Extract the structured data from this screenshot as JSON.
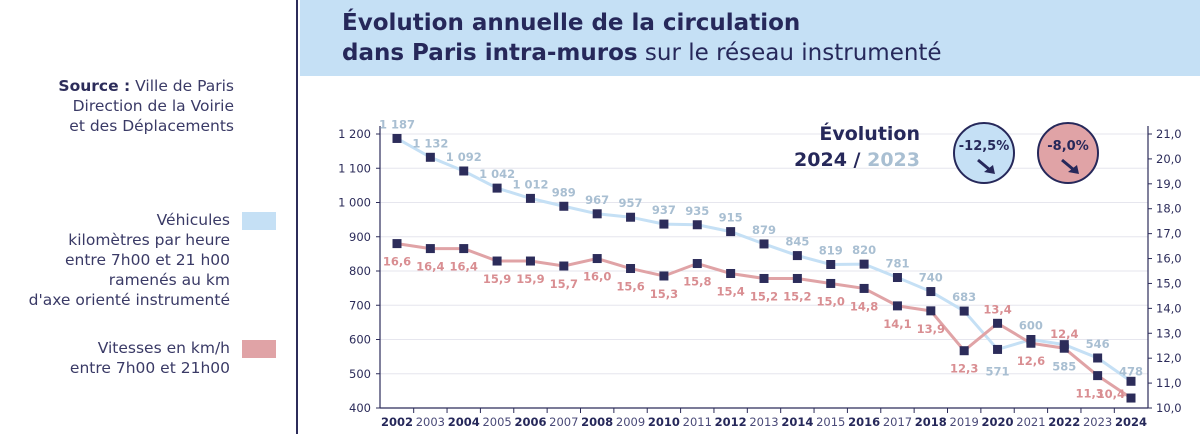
{
  "header": {
    "title_line1": "Évolution annuelle de la circulation",
    "title_line2_bold": "dans Paris intra-muros",
    "title_line2_light": " sur le réseau instrumenté"
  },
  "source": {
    "label": "Source :",
    "line1": " Ville de Paris",
    "line2": "Direction de la Voirie",
    "line3": "et des Déplacements"
  },
  "legend": {
    "vehicles": [
      "Véhicules",
      "kilomètres par heure",
      "entre 7h00 et 21 h00",
      "ramenés au km",
      "d'axe orienté instrumenté"
    ],
    "speed": [
      "Vitesses en km/h",
      "entre 7h00 et 21h00"
    ]
  },
  "evolution": {
    "title": "Évolution",
    "year_current": "2024",
    "separator": " / ",
    "year_previous": "2023",
    "vehicles_change": "-12,5%",
    "speed_change": "-8,0%"
  },
  "colors": {
    "vehicles": "#c5e0f5",
    "speed": "#e0a3a6",
    "marker": "#2c2c5a",
    "vehicles_label": "#a9bfd2",
    "speed_label": "#d98e92",
    "title": "#26285a"
  },
  "chart_data": {
    "type": "line",
    "x": [
      "2002",
      "2003",
      "2004",
      "2005",
      "2006",
      "2007",
      "2008",
      "2009",
      "2010",
      "2011",
      "2012",
      "2013",
      "2014",
      "2015",
      "2016",
      "2017",
      "2018",
      "2019",
      "2020",
      "2021",
      "2022",
      "2023",
      "2024"
    ],
    "series": [
      {
        "axis": "left",
        "values": [
          1187,
          1132,
          1092,
          1042,
          1012,
          989,
          967,
          957,
          937,
          935,
          915,
          879,
          845,
          819,
          820,
          781,
          740,
          683,
          571,
          600,
          585,
          546,
          478
        ],
        "labels": [
          "1 187",
          "1 132",
          "1 092",
          "1 042",
          "1 012",
          "989",
          "967",
          "957",
          "937",
          "935",
          "915",
          "879",
          "845",
          "819",
          "820",
          "781",
          "740",
          "683",
          "571",
          "600",
          "585",
          "546",
          "478"
        ]
      },
      {
        "axis": "right",
        "values": [
          16.6,
          16.4,
          16.4,
          15.9,
          15.9,
          15.7,
          16.0,
          15.6,
          15.3,
          15.8,
          15.4,
          15.2,
          15.2,
          15.0,
          14.8,
          14.1,
          13.9,
          12.3,
          13.4,
          12.6,
          12.4,
          11.3,
          10.4
        ],
        "labels": [
          "16,6",
          "16,4",
          "16,4",
          "15,9",
          "15,9",
          "15,7",
          "16,0",
          "15,6",
          "15,3",
          "15,8",
          "15,4",
          "15,2",
          "15,2",
          "15,0",
          "14,8",
          "14,1",
          "13,9",
          "12,3",
          "13,4",
          "12,6",
          "12,4",
          "11,3",
          "10,4"
        ]
      }
    ],
    "y_left": {
      "range": [
        400,
        1200
      ],
      "ticks": [
        400,
        500,
        600,
        700,
        800,
        900,
        1000,
        1100,
        1200
      ],
      "tick_labels": [
        "400",
        "500",
        "600",
        "700",
        "800",
        "900",
        "1 000",
        "1 100",
        "1 200"
      ]
    },
    "y_right": {
      "range": [
        10.0,
        21.0
      ],
      "ticks": [
        10,
        11,
        12,
        13,
        14,
        15,
        16,
        17,
        18,
        19,
        20,
        21
      ],
      "tick_labels": [
        "10,0",
        "11,0",
        "12,0",
        "13,0",
        "14,0",
        "15,0",
        "16,0",
        "17,0",
        "18,0",
        "19,0",
        "20,0",
        "21,0"
      ]
    },
    "grid": "horizontal"
  }
}
